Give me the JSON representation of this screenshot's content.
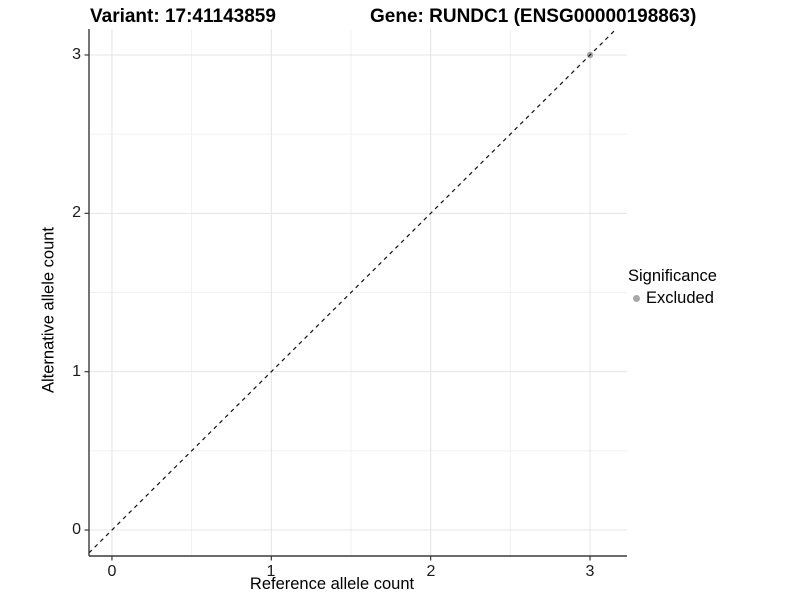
{
  "header": {
    "title_left": "Variant: 17:41143859",
    "title_right": "Gene: RUNDC1 (ENSG00000198863)"
  },
  "chart_data": {
    "type": "scatter",
    "title_left": "Variant: 17:41143859",
    "title_right": "Gene: RUNDC1 (ENSG00000198863)",
    "xlabel": "Reference allele count",
    "ylabel": "Alternative allele count",
    "x_ticks": [
      0,
      1,
      2,
      3
    ],
    "y_ticks": [
      0,
      1,
      2,
      3
    ],
    "x_minor_ticks": [
      0.5,
      1.5,
      2.5
    ],
    "y_minor_ticks": [
      0.5,
      1.5,
      2.5
    ],
    "xlim": [
      -0.144,
      3.232
    ],
    "ylim": [
      -0.164,
      3.164
    ],
    "grid": true,
    "points": [
      {
        "x": 3,
        "y": 3,
        "series": "Excluded",
        "color": "#a8a8a8"
      }
    ],
    "reference_line": {
      "slope": 1,
      "intercept": 0,
      "style": "dashed",
      "color": "#111111"
    },
    "legend": {
      "title": "Significance",
      "position": "right",
      "items": [
        {
          "label": "Excluded",
          "color": "#a8a8a8",
          "marker": "circle"
        }
      ]
    },
    "style": {
      "background": "#ffffff",
      "grid_major_color": "#e4e4e4",
      "grid_minor_color": "#f1f1f1",
      "axis_color": "#3a3a3a",
      "tick_color": "#3a3a3a"
    }
  }
}
